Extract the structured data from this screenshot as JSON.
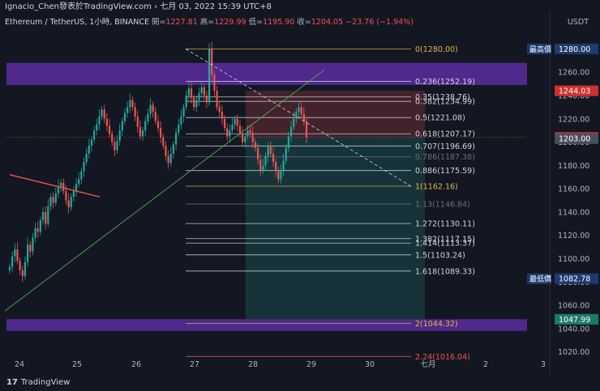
{
  "header": {
    "title": "Ignacio_Chen發表於TradingView.com › 七月 03, 2022 15:39 UTC+8"
  },
  "legend": {
    "symbol": "Ethereum / TetherUS, 1小時, BINANCE",
    "open_label": "開=",
    "open": "1227.81",
    "high_label": "高=",
    "high": "1229.99",
    "low_label": "低=",
    "low": "1195.90",
    "close_label": "收=",
    "close": "1204.05",
    "change": "−23.76 (−1.94%)"
  },
  "currency": "USDT",
  "footer": {
    "brand": "TradingView",
    "logo": "17"
  },
  "colors": {
    "bg": "#131722",
    "up": "#26a69a",
    "down": "#ef5350",
    "zone": "#5b2d9e",
    "fib": "#d1d4dc",
    "fib_gold": "#e0b83e",
    "trend_green": "#4caf50",
    "trend_red": "#ef5350"
  },
  "chart_data": {
    "type": "candlestick",
    "ylim": [
      1010,
      1290
    ],
    "y_ticks": [
      "1020.00",
      "1040.00",
      "1060.00",
      "1080.00",
      "1100.00",
      "1120.00",
      "1140.00",
      "1160.00",
      "1180.00",
      "1200.00",
      "1220.00",
      "1240.00",
      "1260.00",
      "1280.00"
    ],
    "x_ticks": [
      "24",
      "25",
      "26",
      "27",
      "28",
      "29",
      "30",
      "七月",
      "2",
      "3"
    ],
    "fib_levels": [
      {
        "label": "0(1280.00)",
        "v": 1280.0,
        "style": "gold"
      },
      {
        "label": "0.236(1252.19)",
        "v": 1252.19,
        "style": "normal"
      },
      {
        "label": "0.35(1238.76)",
        "v": 1238.76,
        "style": "normal"
      },
      {
        "label": "0.382(1234.99)",
        "v": 1234.99,
        "style": "normal"
      },
      {
        "label": "0.5(1221.08)",
        "v": 1221.08,
        "style": "normal"
      },
      {
        "label": "0.618(1207.17)",
        "v": 1207.17,
        "style": "normal"
      },
      {
        "label": "0.707(1196.69)",
        "v": 1196.69,
        "style": "normal"
      },
      {
        "label": "0.786(1187.38)",
        "v": 1187.38,
        "style": "dim"
      },
      {
        "label": "0.886(1175.59)",
        "v": 1175.59,
        "style": "normal"
      },
      {
        "label": "1(1162.16)",
        "v": 1162.16,
        "style": "gold"
      },
      {
        "label": "1.13(1146.84)",
        "v": 1146.84,
        "style": "dim"
      },
      {
        "label": "1.272(1130.11)",
        "v": 1130.11,
        "style": "normal"
      },
      {
        "label": "1.382(1117.15)",
        "v": 1117.15,
        "style": "normal"
      },
      {
        "label": "1.414(1113.37)",
        "v": 1113.37,
        "style": "normal"
      },
      {
        "label": "1.5(1103.24)",
        "v": 1103.24,
        "style": "normal"
      },
      {
        "label": "1.618(1089.33)",
        "v": 1089.33,
        "style": "normal"
      },
      {
        "label": "2(1044.32)",
        "v": 1044.32,
        "style": "gold"
      },
      {
        "label": "2.24(1016.04)",
        "v": 1016.04,
        "style": "red"
      }
    ],
    "price_labels": [
      {
        "text": "最高價",
        "value": "1280.00",
        "v": 1280.0,
        "color": "#1e3a6e"
      },
      {
        "text": "",
        "value": "1244.03",
        "v": 1244.03,
        "color": "#d32f2f"
      },
      {
        "text": "",
        "value": "1204.05",
        "v": 1204.05,
        "color": "#d32f2f"
      },
      {
        "text": "",
        "value": "1203.00",
        "v": 1203.0,
        "color": "#4a4f5c"
      },
      {
        "text": "最低價",
        "value": "1082.78",
        "v": 1082.78,
        "color": "#1e3a6e"
      },
      {
        "text": "",
        "value": "1047.99",
        "v": 1047.99,
        "color": "#1b7a6b"
      }
    ],
    "zones": [
      {
        "name": "upper-supply-zone",
        "from": 1249,
        "to": 1268
      },
      {
        "name": "lower-demand-zone",
        "from": 1038,
        "to": 1048
      }
    ],
    "position": {
      "entry": 1204.05,
      "stop": 1244.03,
      "target": 1047.99
    },
    "series": [
      1093,
      1102,
      1108,
      1098,
      1090,
      1085,
      1097,
      1112,
      1106,
      1118,
      1126,
      1123,
      1133,
      1140,
      1130,
      1145,
      1153,
      1148,
      1156,
      1162,
      1165,
      1158,
      1150,
      1144,
      1153,
      1158,
      1164,
      1168,
      1175,
      1183,
      1190,
      1197,
      1202,
      1210,
      1215,
      1222,
      1228,
      1220,
      1214,
      1207,
      1200,
      1193,
      1201,
      1210,
      1218,
      1225,
      1230,
      1236,
      1230,
      1222,
      1213,
      1205,
      1210,
      1218,
      1224,
      1232,
      1226,
      1218,
      1212,
      1204,
      1197,
      1188,
      1182,
      1190,
      1198,
      1208,
      1215,
      1222,
      1230,
      1240,
      1246,
      1238,
      1230,
      1236,
      1242,
      1247,
      1240,
      1234,
      1280,
      1258,
      1244,
      1230,
      1226,
      1220,
      1212,
      1205,
      1210,
      1215,
      1220,
      1214,
      1207,
      1200,
      1205,
      1210,
      1208,
      1200,
      1195,
      1185,
      1176,
      1180,
      1188,
      1196,
      1190,
      1183,
      1175,
      1168,
      1176,
      1184,
      1195,
      1205,
      1213,
      1220,
      1226,
      1230,
      1224,
      1218,
      1204
    ]
  }
}
